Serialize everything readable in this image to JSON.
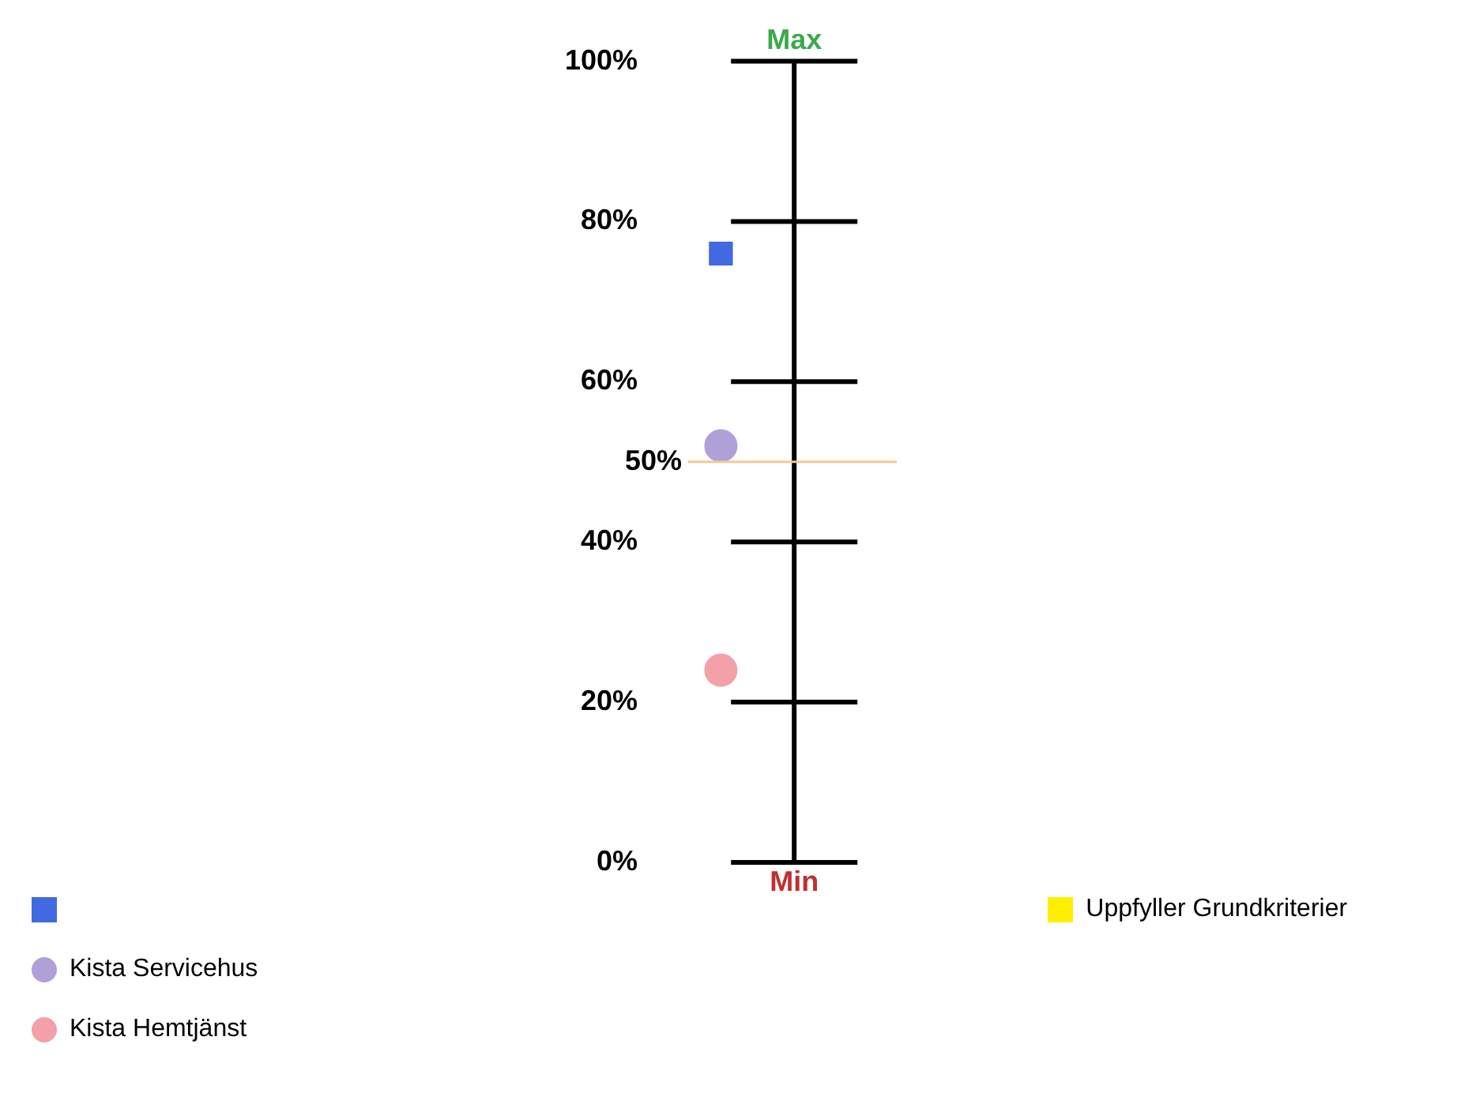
{
  "chart_data": {
    "type": "scatter",
    "categories": [
      null
    ],
    "ylim": [
      0,
      100
    ],
    "yticks": [
      {
        "value": 0,
        "label": "0%"
      },
      {
        "value": 20,
        "label": "20%"
      },
      {
        "value": 40,
        "label": "40%"
      },
      {
        "value": 60,
        "label": "60%"
      },
      {
        "value": 80,
        "label": "80%"
      },
      {
        "value": 100,
        "label": "100%"
      }
    ],
    "grid": "y",
    "legend": "bottom left",
    "series": [
      {
        "color": "#4169e1",
        "marker": "square",
        "values": [
          76
        ]
      },
      {
        "name": "Kista Servicehus",
        "color": "#b0a0d8",
        "marker": "circle",
        "values": [
          52
        ]
      },
      {
        "name": "Kista Hemtjänst",
        "color": "#f4a0a8",
        "marker": "circle",
        "values": [
          24
        ]
      },
      {
        "name": "Uppfyller Grundkriterier",
        "color": "#ffee00",
        "marker": "square",
        "values": [
          null
        ]
      }
    ],
    "ref_lines": [
      {
        "axis": "y",
        "value": 50,
        "label": "50%",
        "color": "#f8c890"
      }
    ],
    "annotations": [
      "Max",
      "Min"
    ]
  }
}
